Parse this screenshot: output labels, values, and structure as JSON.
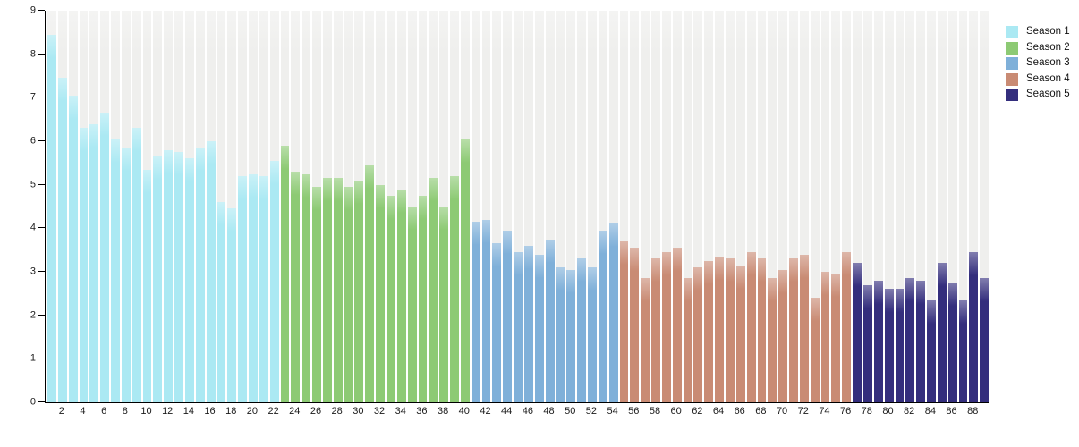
{
  "chart_data": {
    "type": "bar",
    "title": "",
    "xlabel": "",
    "ylabel": "",
    "x_range": [
      1,
      89
    ],
    "ylim": [
      0,
      9
    ],
    "yticks": [
      0,
      1,
      2,
      3,
      4,
      5,
      6,
      7,
      8,
      9
    ],
    "xticks": [
      2,
      4,
      6,
      8,
      10,
      12,
      14,
      16,
      18,
      20,
      22,
      24,
      26,
      28,
      30,
      32,
      34,
      36,
      38,
      40,
      42,
      44,
      46,
      48,
      50,
      52,
      54,
      56,
      58,
      60,
      62,
      64,
      66,
      68,
      70,
      72,
      74,
      76,
      78,
      80,
      82,
      84,
      86,
      88
    ],
    "grid": false,
    "legend_position": "top-right",
    "colors": {
      "background_track": "#efefed",
      "axis": "#000000",
      "tick_label": "#1a1a1a"
    },
    "series": [
      {
        "name": "Season 1",
        "color": "#abe9f3",
        "start_episode": 1,
        "values": [
          8.45,
          7.45,
          7.05,
          6.3,
          6.4,
          6.65,
          6.05,
          5.85,
          6.3,
          5.35,
          5.65,
          5.8,
          5.75,
          5.6,
          5.85,
          6.0,
          4.6,
          4.45,
          5.2,
          5.25,
          5.2,
          5.55
        ]
      },
      {
        "name": "Season 2",
        "color": "#8dca74",
        "start_episode": 23,
        "values": [
          5.9,
          5.3,
          5.25,
          4.95,
          5.15,
          5.15,
          4.95,
          5.1,
          5.45,
          5.0,
          4.75,
          4.9,
          4.5,
          4.75,
          5.15,
          4.5,
          5.2,
          6.05
        ]
      },
      {
        "name": "Season 3",
        "color": "#7fb0d9",
        "start_episode": 41,
        "values": [
          4.15,
          4.2,
          3.65,
          3.95,
          3.45,
          3.6,
          3.4,
          3.75,
          3.1,
          3.05,
          3.3,
          3.1,
          3.95,
          4.1
        ]
      },
      {
        "name": "Season 4",
        "color": "#c98b74",
        "start_episode": 55,
        "values": [
          3.7,
          3.55,
          2.85,
          3.3,
          3.45,
          3.55,
          2.85,
          3.1,
          3.25,
          3.35,
          3.3,
          3.15,
          3.45,
          3.3,
          2.85,
          3.05,
          3.3,
          3.4,
          2.4,
          3.0,
          2.95,
          3.45
        ]
      },
      {
        "name": "Season 5",
        "color": "#342e7d",
        "start_episode": 77,
        "values": [
          3.2,
          2.7,
          2.8,
          2.6,
          2.6,
          2.85,
          2.8,
          2.35,
          3.2,
          2.75,
          2.35,
          3.45,
          2.85
        ]
      }
    ]
  }
}
